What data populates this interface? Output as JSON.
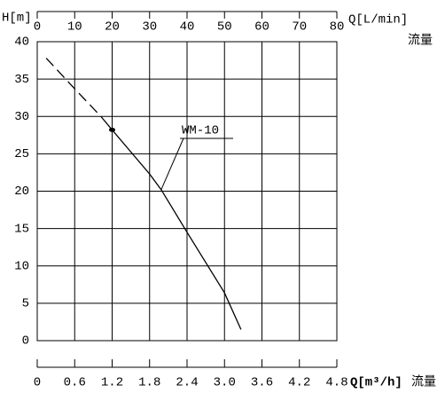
{
  "chart_data": {
    "type": "line",
    "y_label": "H[m]",
    "x_label": "Q[L/min]",
    "x_label_sub": "流量",
    "x2_label": "Q[m³/h]",
    "x2_label_sub": "流量",
    "xlim": [
      0,
      80
    ],
    "xticks": [
      0,
      10,
      20,
      30,
      40,
      50,
      60,
      70,
      80
    ],
    "x2lim": [
      0,
      4.8
    ],
    "x2ticks": [
      0,
      0.6,
      1.2,
      1.8,
      2.4,
      {
        "value": 3,
        "label": "3.0"
      },
      3.6,
      4.2,
      4.8
    ],
    "ylim": [
      0,
      40
    ],
    "yticks": [
      0,
      5,
      10,
      15,
      20,
      25,
      30,
      35,
      40
    ],
    "grid": true,
    "color": "#000000",
    "series": [
      {
        "dashed": true,
        "x": [
          2.4,
          10,
          17
        ],
        "values": [
          37.8,
          33.7,
          30
        ]
      },
      {
        "dashed": false,
        "x": [
          17,
          20,
          30,
          33.1,
          40,
          50,
          54.4
        ],
        "values": [
          30,
          28.2,
          22.3,
          20.2,
          14.5,
          6.4,
          1.5
        ]
      }
    ],
    "marker": {
      "x": 20,
      "y": 28.2
    },
    "annotation": {
      "text": "WM-10",
      "x": 33.1,
      "y": 20.2
    }
  }
}
